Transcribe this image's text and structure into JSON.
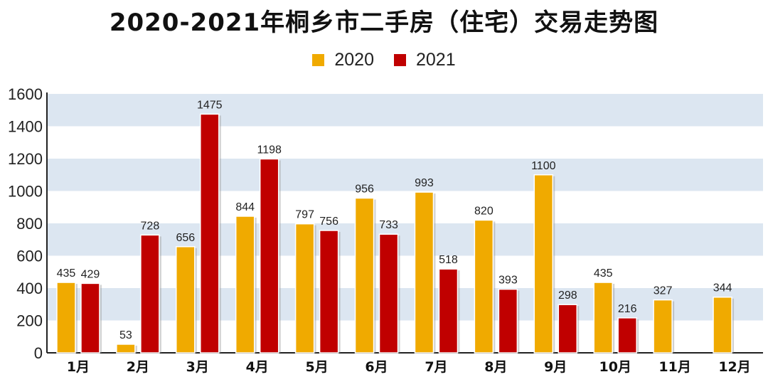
{
  "chart_data": {
    "type": "bar",
    "title": "2020-2021年桐乡市二手房（住宅）交易走势图",
    "categories": [
      "1月",
      "2月",
      "3月",
      "4月",
      "5月",
      "6月",
      "7月",
      "8月",
      "9月",
      "10月",
      "11月",
      "12月"
    ],
    "series": [
      {
        "name": "2020",
        "color": "#F0AA00",
        "values": [
          435,
          53,
          656,
          844,
          797,
          956,
          993,
          820,
          1100,
          435,
          327,
          344
        ]
      },
      {
        "name": "2021",
        "color": "#C00000",
        "values": [
          429,
          728,
          1475,
          1198,
          756,
          733,
          518,
          393,
          298,
          216,
          null,
          null
        ]
      }
    ],
    "ylim": [
      0,
      1600
    ],
    "yticks": [
      0,
      200,
      400,
      600,
      800,
      1000,
      1200,
      1400,
      1600
    ],
    "grid": "alternating horizontal bands",
    "band_color": "#DCE6F1",
    "legend_position": "top-center",
    "data_labels": true
  }
}
